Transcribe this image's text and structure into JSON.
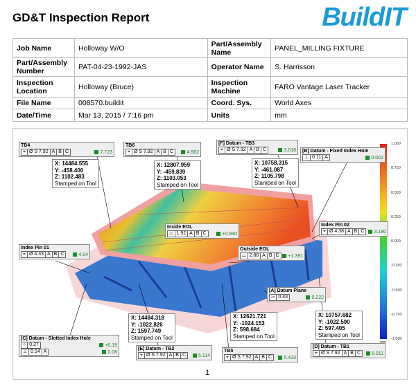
{
  "header": {
    "title": "GD&T Inspection Report",
    "logo": "BuildIT"
  },
  "table": {
    "rows": [
      [
        "Job Name",
        "Holloway W/O",
        "Part/Assembly Name",
        "PANEL_MILLING FIXTURE"
      ],
      [
        "Part/Assembly Number",
        "PAT-04-23-1992-JAS",
        "Operator Name",
        "S. Harrisson"
      ],
      [
        "Inspection Location",
        "Holloway (Bruce)",
        "Inspection Machine",
        "FARO Vantage Laser Tracker"
      ],
      [
        "File Name",
        "008570.buildit",
        "Coord. Sys.",
        "World Axes"
      ],
      [
        "Date/Time",
        "Mar 13, 2015 / 7:16 pm",
        "Units",
        "mm"
      ]
    ]
  },
  "figure": {
    "callouts": [
      {
        "title": "TB4",
        "frames": [
          {
            "cells": [
              "⌖",
              "Ø S 7.92",
              "A",
              "B",
              "C"
            ],
            "value": "7.723"
          }
        ]
      },
      {
        "title": "TB6",
        "frames": [
          {
            "cells": [
              "⌖",
              "Ø S 7.92",
              "A",
              "B",
              "C"
            ],
            "value": "4.962"
          }
        ]
      },
      {
        "title": "[F] Datum - TB3",
        "frames": [
          {
            "cells": [
              "⌖",
              "Ø S 7.92",
              "A",
              "B",
              "C"
            ],
            "value": "3.618"
          }
        ]
      },
      {
        "title": "[B] Datum - Fixed Index Hole",
        "frames": [
          {
            "cells": [
              "⊥",
              "0.11",
              "A"
            ],
            "value": "0.002"
          }
        ]
      },
      {
        "title": "Inside EOL",
        "frames": [
          {
            "cells": [
              "⌓",
              "1.92",
              "A",
              "B",
              "C"
            ],
            "value": "+0.940"
          }
        ]
      },
      {
        "title": "Index Pin 02",
        "frames": [
          {
            "cells": [
              "⌖",
              "Ø 4.38",
              "A",
              "B",
              "C"
            ],
            "value": "3.180"
          }
        ]
      },
      {
        "title": "Index Pin 01",
        "frames": [
          {
            "cells": [
              "⌖",
              "Ø 4.33",
              "A",
              "B",
              "C"
            ],
            "value": "4.04"
          }
        ]
      },
      {
        "title": "Outside EOL",
        "frames": [
          {
            "cells": [
              "⌓",
              "2.88",
              "A",
              "B",
              "C"
            ],
            "value": "+1.391"
          }
        ]
      },
      {
        "title": "[A] Datum Plane",
        "frames": [
          {
            "cells": [
              "▱",
              "0.43"
            ],
            "value": "0.222"
          }
        ]
      },
      {
        "title": "[C] Datum - Slotted Index Hole",
        "frames": [
          {
            "cells": [
              "○",
              "0.27"
            ],
            "value": "+0.19"
          },
          {
            "cells": [
              "⊥",
              "0.14",
              "A"
            ],
            "value": "0.08"
          }
        ]
      },
      {
        "title": "[E] Datum - TB2",
        "frames": [
          {
            "cells": [
              "⌖",
              "Ø S 7.92",
              "A",
              "B",
              "C"
            ],
            "value": "5.114"
          }
        ]
      },
      {
        "title": "TB5",
        "frames": [
          {
            "cells": [
              "⌖",
              "Ø S 7.92",
              "A",
              "B",
              "C"
            ],
            "value": "5.433"
          }
        ]
      },
      {
        "title": "[D] Datum - TB1",
        "frames": [
          {
            "cells": [
              "⌖",
              "Ø S 7.92",
              "A",
              "B",
              "C"
            ],
            "value": "6.011"
          }
        ]
      }
    ],
    "coordinates": [
      {
        "lines": [
          "X: 14484.555",
          "Y: -458.400",
          "Z: 1102.483",
          "Stamped on Tool"
        ]
      },
      {
        "lines": [
          "X: 12807.959",
          "Y: -459.839",
          "Z: 1103.053",
          "Stamped on Tool"
        ]
      },
      {
        "lines": [
          "X: 10758.315",
          "Y: -461.087",
          "Z: 1105.798",
          "Stamped on Tool"
        ]
      },
      {
        "lines": [
          "X: 14484.318",
          "Y: -1022.826",
          "Z: 1597.749",
          "Stamped on Tool"
        ]
      },
      {
        "lines": [
          "X: 12621.721",
          "Y: -1024.153",
          "Z: 598.684",
          "Stamped on Tool"
        ]
      },
      {
        "lines": [
          "X: 10757.682",
          "Y: -1022.590",
          "Z: 597.405",
          "Stamped on Tool"
        ]
      }
    ],
    "color_scale": {
      "labels": [
        "1.000",
        "0.750",
        "0.500",
        "0.250",
        "0.000",
        "-0.250",
        "-0.500",
        "-0.750",
        "-1.000"
      ],
      "unit": "mm"
    }
  },
  "footer": {
    "page": "1"
  }
}
